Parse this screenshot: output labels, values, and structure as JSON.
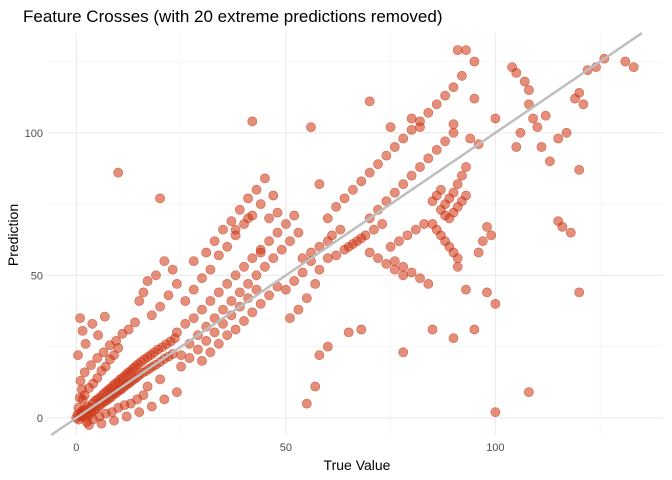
{
  "chart_data": {
    "type": "scatter",
    "title": "Feature Crosses (with 20 extreme predictions removed)",
    "xlabel": "True Value",
    "ylabel": "Prediction",
    "xlim": [
      -7,
      140
    ],
    "ylim": [
      -6,
      135
    ],
    "x_ticks": [
      0,
      50,
      100
    ],
    "y_ticks": [
      0,
      50,
      100
    ],
    "grid": true,
    "point_color": "#CC3311",
    "point_opacity": 0.55,
    "reference_line": {
      "slope": 1,
      "intercept": 0,
      "color": "#BEBEBE"
    },
    "points": {
      "cluster": [
        [
          0,
          0
        ],
        [
          0.3,
          1.2
        ],
        [
          0.6,
          -0.6
        ],
        [
          1.0,
          1.7
        ],
        [
          1.2,
          0.5
        ],
        [
          1.5,
          2.6
        ],
        [
          1.8,
          0.2
        ],
        [
          2.1,
          3.1
        ],
        [
          2.4,
          1.5
        ],
        [
          2.7,
          4.0
        ],
        [
          3.0,
          0.9
        ],
        [
          3.3,
          3.5
        ],
        [
          3.6,
          2.0
        ],
        [
          3.9,
          5.1
        ],
        [
          4.2,
          2.8
        ],
        [
          4.5,
          6.0
        ],
        [
          4.8,
          3.3
        ],
        [
          5.1,
          6.6
        ],
        [
          5.4,
          4.1
        ],
        [
          5.7,
          7.2
        ],
        [
          6.0,
          4.9
        ],
        [
          6.3,
          8.1
        ],
        [
          6.6,
          5.6
        ],
        [
          6.9,
          8.9
        ],
        [
          7.2,
          6.1
        ],
        [
          7.5,
          9.7
        ],
        [
          7.8,
          6.8
        ],
        [
          8.1,
          10.3
        ],
        [
          8.4,
          7.4
        ],
        [
          8.7,
          11.2
        ],
        [
          9.0,
          8.3
        ],
        [
          9.3,
          12.0
        ],
        [
          9.6,
          8.8
        ],
        [
          9.9,
          12.6
        ],
        [
          10.2,
          9.6
        ],
        [
          10.5,
          13.5
        ],
        [
          10.8,
          10.1
        ],
        [
          11.1,
          14.1
        ],
        [
          11.4,
          10.9
        ],
        [
          11.7,
          14.9
        ],
        [
          12.0,
          11.6
        ],
        [
          12.3,
          15.8
        ],
        [
          12.6,
          12.2
        ],
        [
          12.9,
          16.4
        ],
        [
          13.2,
          12.9
        ],
        [
          13.5,
          17.3
        ],
        [
          13.8,
          13.6
        ],
        [
          14.1,
          18.0
        ],
        [
          14.4,
          14.2
        ],
        [
          14.7,
          18.8
        ],
        [
          15.0,
          15.0
        ],
        [
          15.4,
          19.6
        ],
        [
          15.8,
          15.8
        ],
        [
          16.2,
          20.5
        ],
        [
          16.6,
          16.4
        ],
        [
          17.0,
          21.3
        ],
        [
          17.4,
          17.2
        ],
        [
          17.8,
          22.1
        ],
        [
          18.2,
          18.0
        ],
        [
          18.6,
          23.0
        ],
        [
          19.0,
          18.7
        ],
        [
          19.5,
          24.0
        ],
        [
          20.0,
          19.6
        ],
        [
          20.5,
          24.8
        ],
        [
          21.0,
          20.7
        ],
        [
          21.5,
          25.9
        ],
        [
          22.0,
          21.5
        ],
        [
          22.5,
          26.8
        ],
        [
          23.0,
          22.4
        ],
        [
          23.5,
          27.9
        ],
        [
          1.5,
          6.5
        ],
        [
          2.0,
          8.0
        ],
        [
          3.0,
          10.5
        ],
        [
          4.0,
          12.0
        ],
        [
          5.0,
          14.0
        ],
        [
          6.0,
          16.5
        ],
        [
          7.0,
          18.0
        ],
        [
          8.0,
          20.5
        ],
        [
          9.0,
          22.0
        ],
        [
          10.0,
          24.5
        ],
        [
          2.5,
          -1.5
        ],
        [
          4.0,
          -0.5
        ],
        [
          5.5,
          0.5
        ],
        [
          7.0,
          1.5
        ],
        [
          8.5,
          2.0
        ],
        [
          10.0,
          3.5
        ],
        [
          11.5,
          4.5
        ],
        [
          13.0,
          5.0
        ],
        [
          14.5,
          6.5
        ],
        [
          16.0,
          8.0
        ],
        [
          1.0,
          13.0
        ],
        [
          2.0,
          16.0
        ],
        [
          3.5,
          18.5
        ],
        [
          5.0,
          21.0
        ],
        [
          6.5,
          23.0
        ],
        [
          8.0,
          25.5
        ],
        [
          9.5,
          27.0
        ],
        [
          11.0,
          29.5
        ],
        [
          12.5,
          31.0
        ],
        [
          14.0,
          33.5
        ],
        [
          3.0,
          -2.5
        ],
        [
          6.0,
          -2.0
        ],
        [
          9.0,
          -1.0
        ],
        [
          12.0,
          0.5
        ],
        [
          15.0,
          2.0
        ],
        [
          18.0,
          4.0
        ],
        [
          21.0,
          6.5
        ],
        [
          24.0,
          9.0
        ],
        [
          17.0,
          11.0
        ],
        [
          20.0,
          13.5
        ],
        [
          0.5,
          3.5
        ],
        [
          0.8,
          7.0
        ],
        [
          1.3,
          10.0
        ],
        [
          0.4,
          22.0
        ],
        [
          0.9,
          35.0
        ],
        [
          1.5,
          30.5
        ],
        [
          2.2,
          26.0
        ],
        [
          3.8,
          33.0
        ],
        [
          5.2,
          29.0
        ],
        [
          6.8,
          35.5
        ]
      ],
      "middle": [
        [
          24,
          30
        ],
        [
          25,
          22
        ],
        [
          26,
          33
        ],
        [
          27,
          26
        ],
        [
          28,
          35
        ],
        [
          29,
          29
        ],
        [
          30,
          38
        ],
        [
          31,
          32
        ],
        [
          32,
          41
        ],
        [
          33,
          35
        ],
        [
          34,
          44
        ],
        [
          35,
          38
        ],
        [
          36,
          47
        ],
        [
          37,
          41
        ],
        [
          38,
          50
        ],
        [
          39,
          44
        ],
        [
          40,
          53
        ],
        [
          41,
          47
        ],
        [
          42,
          56
        ],
        [
          43,
          50
        ],
        [
          44,
          59
        ],
        [
          45,
          53
        ],
        [
          46,
          62
        ],
        [
          47,
          56
        ],
        [
          48,
          65
        ],
        [
          49,
          59
        ],
        [
          50,
          68
        ],
        [
          51,
          62
        ],
        [
          52,
          71
        ],
        [
          53,
          65
        ],
        [
          26,
          41
        ],
        [
          28,
          45
        ],
        [
          30,
          49
        ],
        [
          32,
          52
        ],
        [
          34,
          57
        ],
        [
          36,
          60
        ],
        [
          38,
          64
        ],
        [
          40,
          68
        ],
        [
          42,
          71
        ],
        [
          44,
          75
        ],
        [
          25,
          18
        ],
        [
          27,
          21
        ],
        [
          29,
          24
        ],
        [
          31,
          27
        ],
        [
          33,
          30
        ],
        [
          35,
          33
        ],
        [
          37,
          36
        ],
        [
          39,
          39
        ],
        [
          41,
          42
        ],
        [
          43,
          45
        ],
        [
          22,
          43
        ],
        [
          24,
          47
        ],
        [
          20,
          39
        ],
        [
          18,
          36
        ],
        [
          16,
          44
        ],
        [
          19,
          50
        ],
        [
          21,
          55
        ],
        [
          23,
          52
        ],
        [
          17,
          48
        ],
        [
          15,
          41
        ],
        [
          30,
          20
        ],
        [
          32,
          23
        ],
        [
          34,
          26
        ],
        [
          36,
          29
        ],
        [
          38,
          31
        ],
        [
          40,
          34
        ],
        [
          42,
          37
        ],
        [
          44,
          40
        ],
        [
          46,
          43
        ],
        [
          48,
          46
        ],
        [
          28,
          55
        ],
        [
          31,
          58
        ],
        [
          33,
          62
        ],
        [
          35,
          66
        ],
        [
          37,
          69
        ],
        [
          39,
          73
        ],
        [
          41,
          77
        ],
        [
          43,
          80
        ],
        [
          45,
          84
        ],
        [
          47,
          78
        ],
        [
          50,
          45
        ],
        [
          52,
          48
        ],
        [
          54,
          51
        ],
        [
          56,
          55
        ],
        [
          55,
          42
        ],
        [
          57,
          47
        ],
        [
          58,
          52
        ],
        [
          60,
          56
        ],
        [
          53,
          38
        ],
        [
          51,
          35
        ],
        [
          20,
          77
        ],
        [
          10,
          86
        ],
        [
          42,
          104
        ],
        [
          56,
          102
        ],
        [
          41,
          70
        ],
        [
          38,
          66
        ],
        [
          46,
          70
        ],
        [
          48,
          72
        ],
        [
          58,
          82
        ],
        [
          44,
          58
        ]
      ],
      "upper": [
        [
          60,
          70
        ],
        [
          62,
          74
        ],
        [
          64,
          77
        ],
        [
          66,
          80
        ],
        [
          68,
          83
        ],
        [
          70,
          86
        ],
        [
          72,
          89
        ],
        [
          74,
          92
        ],
        [
          76,
          95
        ],
        [
          78,
          98
        ],
        [
          80,
          101
        ],
        [
          82,
          104
        ],
        [
          84,
          107
        ],
        [
          86,
          110
        ],
        [
          88,
          113
        ],
        [
          90,
          116
        ],
        [
          70,
          70
        ],
        [
          72,
          73
        ],
        [
          74,
          76
        ],
        [
          76,
          79
        ],
        [
          78,
          82
        ],
        [
          80,
          85
        ],
        [
          82,
          88
        ],
        [
          84,
          91
        ],
        [
          86,
          94
        ],
        [
          88,
          97
        ],
        [
          90,
          100
        ],
        [
          85,
          76
        ],
        [
          86,
          78
        ],
        [
          87,
          80
        ],
        [
          88,
          75
        ],
        [
          89,
          77
        ],
        [
          90,
          79
        ],
        [
          91,
          74
        ],
        [
          92,
          76
        ],
        [
          93,
          78
        ],
        [
          87,
          73
        ],
        [
          88,
          71
        ],
        [
          89,
          70
        ],
        [
          90,
          72
        ],
        [
          91,
          82
        ],
        [
          92,
          85
        ],
        [
          93,
          88
        ],
        [
          85,
          68
        ],
        [
          86,
          66
        ],
        [
          87,
          64
        ],
        [
          88,
          62
        ],
        [
          89,
          60
        ],
        [
          90,
          58
        ],
        [
          91,
          56
        ],
        [
          75,
          60
        ],
        [
          77,
          62
        ],
        [
          79,
          64
        ],
        [
          81,
          66
        ],
        [
          83,
          68
        ],
        [
          76,
          55
        ],
        [
          78,
          53
        ],
        [
          80,
          51
        ],
        [
          82,
          49
        ],
        [
          84,
          47
        ],
        [
          70,
          58
        ],
        [
          72,
          56
        ],
        [
          74,
          54
        ],
        [
          76,
          52
        ],
        [
          78,
          50
        ],
        [
          65,
          60
        ],
        [
          67,
          62
        ],
        [
          69,
          64
        ],
        [
          71,
          66
        ],
        [
          73,
          68
        ],
        [
          62,
          57
        ],
        [
          64,
          59
        ],
        [
          66,
          61
        ],
        [
          68,
          63
        ],
        [
          60,
          62
        ],
        [
          58,
          60
        ],
        [
          56,
          58
        ],
        [
          54,
          56
        ],
        [
          63,
          66
        ],
        [
          61,
          64
        ],
        [
          70,
          111
        ],
        [
          80,
          105
        ],
        [
          82,
          102
        ],
        [
          75,
          102
        ],
        [
          90,
          103
        ],
        [
          92,
          120
        ],
        [
          95,
          112
        ],
        [
          100,
          105
        ],
        [
          94,
          98
        ],
        [
          96,
          96
        ],
        [
          78,
          23
        ],
        [
          85,
          31
        ],
        [
          90,
          28
        ],
        [
          95,
          31
        ],
        [
          98,
          67
        ],
        [
          105,
          95
        ],
        [
          106,
          100
        ],
        [
          108,
          115
        ],
        [
          110,
          102
        ],
        [
          112,
          106
        ],
        [
          104,
          123
        ],
        [
          105,
          121
        ],
        [
          107,
          118
        ],
        [
          108,
          110
        ],
        [
          109,
          105
        ],
        [
          111,
          95
        ],
        [
          113,
          90
        ],
        [
          115,
          98
        ],
        [
          117,
          100
        ],
        [
          119,
          112
        ],
        [
          120,
          114
        ],
        [
          121,
          110
        ],
        [
          122,
          122
        ],
        [
          124,
          123
        ],
        [
          126,
          126
        ],
        [
          131,
          125
        ],
        [
          133,
          123
        ],
        [
          115,
          69
        ],
        [
          116,
          67
        ],
        [
          118,
          65
        ],
        [
          120,
          44
        ],
        [
          120,
          87
        ],
        [
          108,
          9
        ],
        [
          100,
          2
        ],
        [
          55,
          5
        ],
        [
          57,
          11
        ],
        [
          58,
          22
        ],
        [
          60,
          25
        ],
        [
          65,
          30
        ],
        [
          68,
          31
        ],
        [
          91,
          129
        ],
        [
          93,
          129
        ],
        [
          95,
          125
        ],
        [
          91,
          53
        ],
        [
          93,
          45
        ],
        [
          98,
          44
        ],
        [
          100,
          40
        ],
        [
          96,
          58
        ],
        [
          97,
          62
        ],
        [
          99,
          64
        ]
      ]
    }
  }
}
